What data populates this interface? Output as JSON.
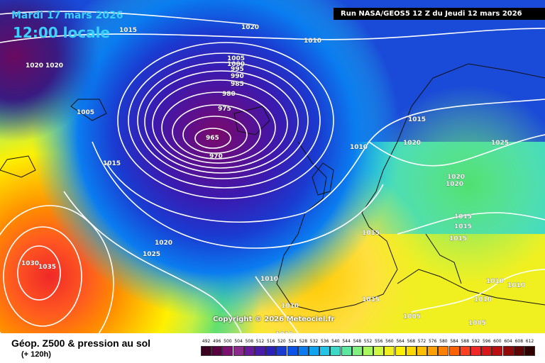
{
  "header": {
    "date_line": "Mardi 17 mars 2026",
    "time_line": "12:00 locale",
    "run_info": "Run NASA/GEOS5 12 Z du Jeudi 12 mars 2026"
  },
  "copyright": "Copyright © 2026 Meteociel.fr",
  "footer": {
    "title": "Géop. Z500 & pression au sol",
    "forecast_offset": "(+ 120h)"
  },
  "scale_ticks": [
    "492",
    "496",
    "500",
    "504",
    "508",
    "512",
    "516",
    "520",
    "524",
    "528",
    "532",
    "536",
    "540",
    "544",
    "548",
    "552",
    "556",
    "560",
    "564",
    "568",
    "572",
    "576",
    "580",
    "584",
    "588",
    "592",
    "596",
    "600",
    "604",
    "608",
    "612"
  ],
  "scale_colors": [
    "#3a0020",
    "#5a0040",
    "#7a1070",
    "#8a2a8a",
    "#6a1a9a",
    "#4a1aa8",
    "#2a22b8",
    "#1a3ad0",
    "#0a52e8",
    "#0a7cf0",
    "#10a4f0",
    "#22c4e8",
    "#3ed8c8",
    "#5ce8a0",
    "#80f080",
    "#a8f860",
    "#d0f840",
    "#f0f020",
    "#fff000",
    "#ffd800",
    "#ffbe00",
    "#ffa000",
    "#ff8000",
    "#ff6000",
    "#ff4020",
    "#f02828",
    "#d81818",
    "#b81010",
    "#900808",
    "#600404",
    "#300000"
  ],
  "isobars": [
    {
      "text": "965",
      "id": "low-center"
    },
    {
      "text": "970"
    },
    {
      "text": "975"
    },
    {
      "text": "980"
    },
    {
      "text": "985"
    },
    {
      "text": "990"
    },
    {
      "text": "995"
    },
    {
      "text": "1000"
    },
    {
      "text": "1005"
    },
    {
      "text": "1010"
    },
    {
      "text": "1015"
    },
    {
      "text": "1020"
    },
    {
      "text": "1025"
    },
    {
      "text": "1030"
    },
    {
      "text": "1035"
    }
  ]
}
